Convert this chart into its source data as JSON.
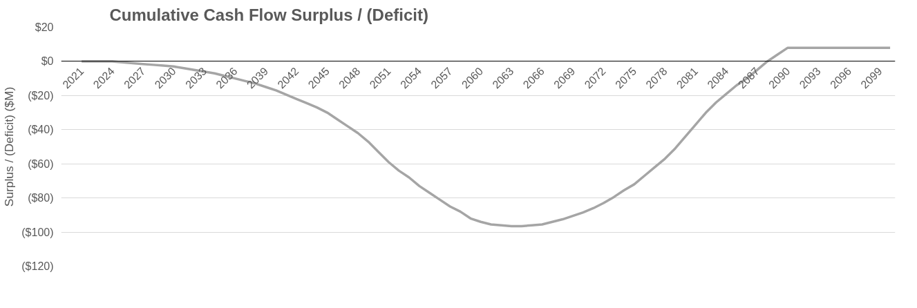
{
  "chart_data": {
    "type": "line",
    "title": "Cumulative Cash Flow Surplus / (Deficit)",
    "ylabel": "Surplus / (Deficit) ($M)",
    "x": [
      2021,
      2022,
      2023,
      2024,
      2025,
      2026,
      2027,
      2028,
      2029,
      2030,
      2031,
      2032,
      2033,
      2034,
      2035,
      2036,
      2037,
      2038,
      2039,
      2040,
      2041,
      2042,
      2043,
      2044,
      2045,
      2046,
      2047,
      2048,
      2049,
      2050,
      2051,
      2052,
      2053,
      2054,
      2055,
      2056,
      2057,
      2058,
      2059,
      2060,
      2061,
      2062,
      2063,
      2064,
      2065,
      2066,
      2067,
      2068,
      2069,
      2070,
      2071,
      2072,
      2073,
      2074,
      2075,
      2076,
      2077,
      2078,
      2079,
      2080,
      2081,
      2082,
      2083,
      2084,
      2085,
      2086,
      2087,
      2088,
      2089,
      2090,
      2091,
      2092,
      2093,
      2094,
      2095,
      2096,
      2097,
      2098,
      2099,
      2100
    ],
    "series": [
      {
        "color": "#a5a5a5",
        "values": [
          0,
          0,
          0,
          0,
          -0.5,
          -1,
          -1.5,
          -2,
          -2.5,
          -3,
          -4,
          -5,
          -6,
          -7,
          -8.5,
          -10,
          -11.5,
          -13,
          -15,
          -17,
          -19.5,
          -22,
          -24.5,
          -27,
          -30,
          -34,
          -38,
          -42,
          -47,
          -53,
          -59,
          -64,
          -68,
          -73,
          -77,
          -81,
          -85,
          -88,
          -92,
          -94,
          -95.5,
          -96,
          -96.5,
          -96.5,
          -96,
          -95.5,
          -94,
          -92.5,
          -90.5,
          -88.5,
          -86,
          -83,
          -79.5,
          -75.5,
          -72,
          -67,
          -62,
          -57,
          -51,
          -44,
          -37,
          -30,
          -24,
          -19,
          -14,
          -10,
          -5,
          0,
          4,
          8,
          8,
          8,
          8,
          8,
          8,
          8,
          8,
          8,
          8,
          8
        ]
      }
    ],
    "xlim": [
      2019,
      2100.5
    ],
    "xticks": [
      2021,
      2024,
      2027,
      2030,
      2033,
      2036,
      2039,
      2042,
      2045,
      2048,
      2051,
      2054,
      2057,
      2060,
      2063,
      2066,
      2069,
      2072,
      2075,
      2078,
      2081,
      2084,
      2087,
      2090,
      2093,
      2096,
      2099
    ],
    "ylim": [
      -120,
      20
    ],
    "yticks": [
      {
        "value": 20,
        "label": "$20"
      },
      {
        "value": 0,
        "label": "$0"
      },
      {
        "value": -20,
        "label": "($20)"
      },
      {
        "value": -40,
        "label": "($40)"
      },
      {
        "value": -60,
        "label": "($60)"
      },
      {
        "value": -80,
        "label": "($80)"
      },
      {
        "value": -100,
        "label": "($100)"
      },
      {
        "value": -120,
        "label": "($120)"
      }
    ],
    "grid": "y",
    "line_style": "solid",
    "marker": "none"
  }
}
